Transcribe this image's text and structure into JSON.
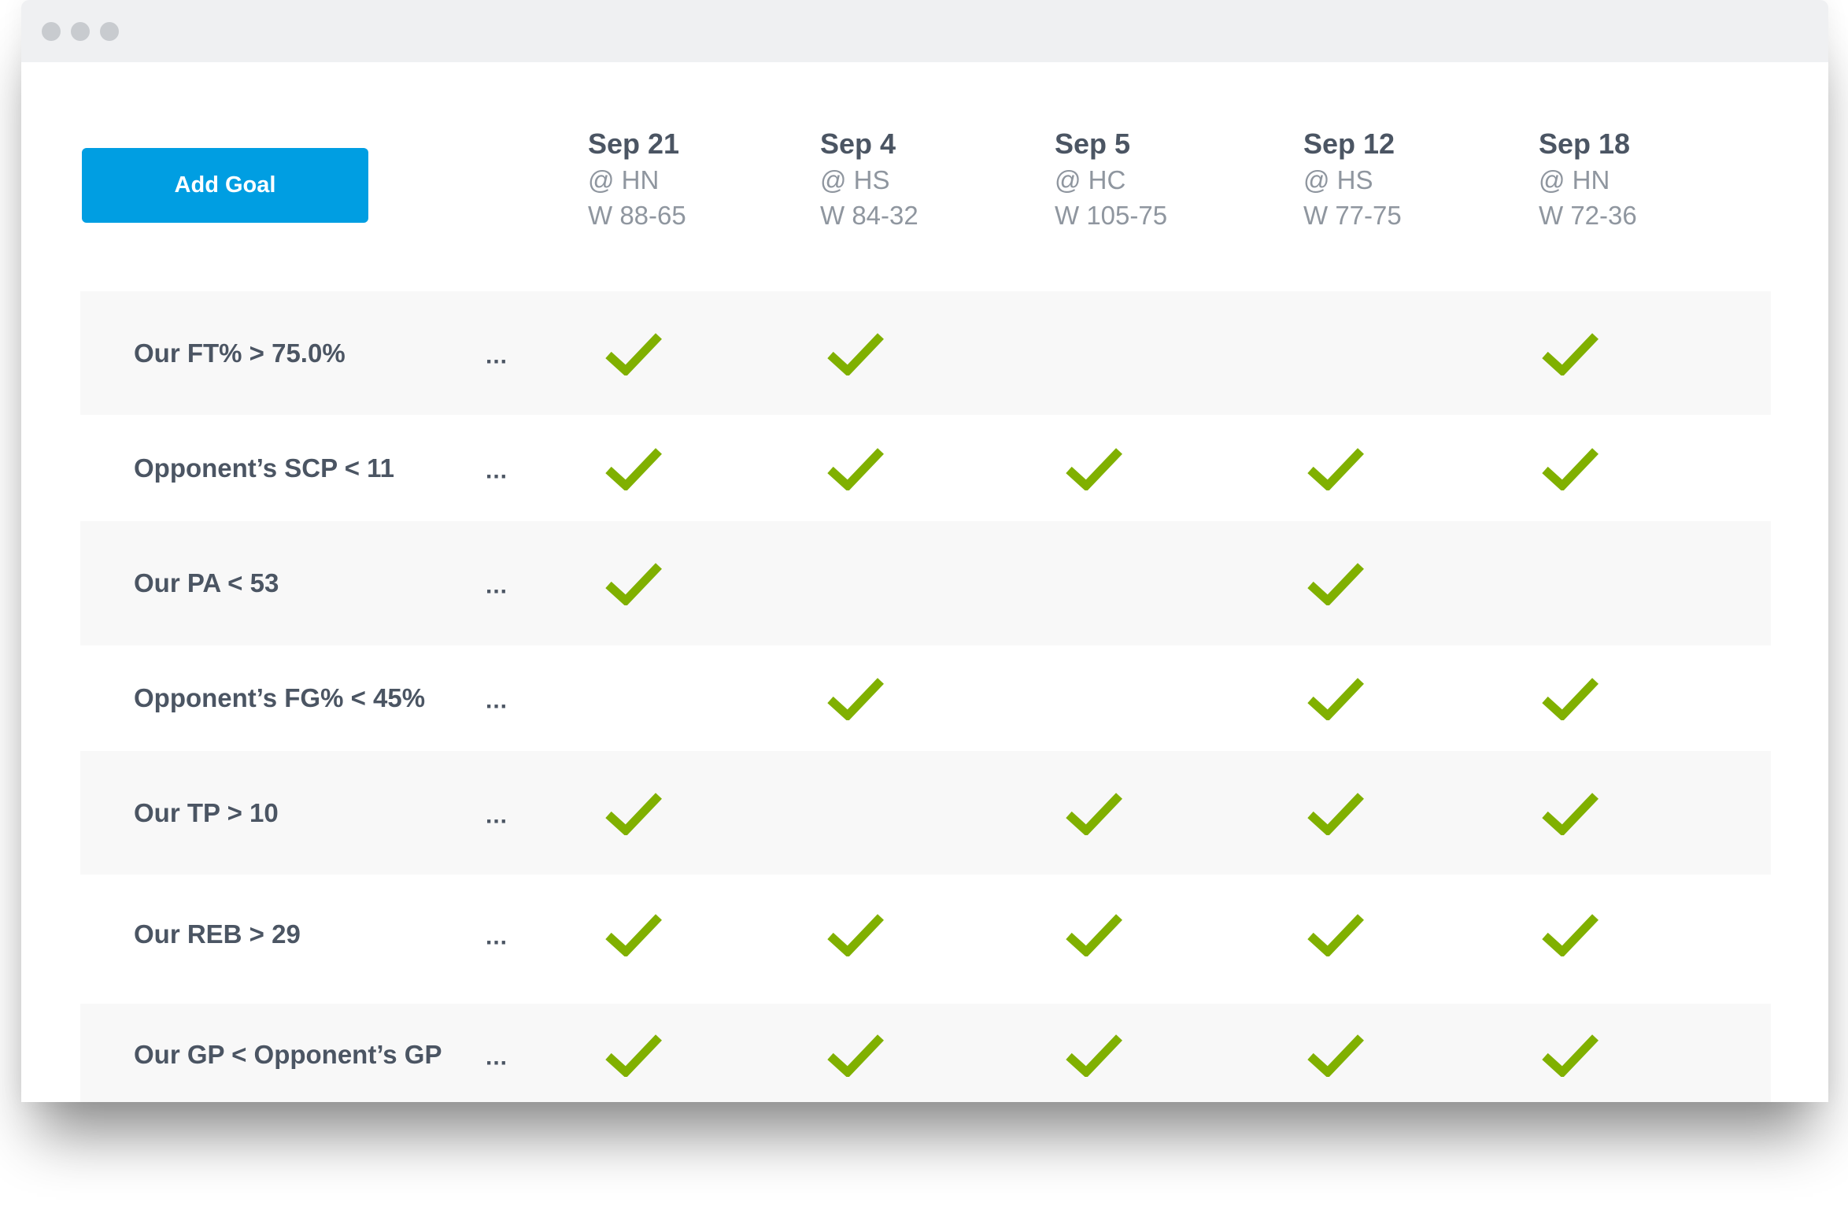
{
  "toolbar": {
    "add_goal_label": "Add Goal"
  },
  "colors": {
    "accent": "#009ee2",
    "check": "#80b000",
    "text": "#4b5563"
  },
  "games": [
    {
      "date": "Sep 21",
      "opponent": "@ HN",
      "result": "W 88-65"
    },
    {
      "date": "Sep 4",
      "opponent": "@ HS",
      "result": "W 84-32"
    },
    {
      "date": "Sep 5",
      "opponent": "@ HC",
      "result": "W 105-75"
    },
    {
      "date": "Sep 12",
      "opponent": "@ HS",
      "result": "W 77-75"
    },
    {
      "date": "Sep 18",
      "opponent": "@ HN",
      "result": "W 72-36"
    }
  ],
  "goals": [
    {
      "label": "Our FT% > 75.0%",
      "more": "...",
      "met": [
        true,
        true,
        false,
        false,
        true
      ]
    },
    {
      "label": "Opponent’s SCP < 11",
      "more": "...",
      "met": [
        true,
        true,
        true,
        true,
        true
      ]
    },
    {
      "label": "Our PA < 53",
      "more": "...",
      "met": [
        true,
        false,
        false,
        true,
        false
      ]
    },
    {
      "label": "Opponent’s FG% < 45%",
      "more": "...",
      "met": [
        false,
        true,
        false,
        true,
        true
      ]
    },
    {
      "label": "Our TP > 10",
      "more": "...",
      "met": [
        true,
        false,
        true,
        true,
        true
      ]
    },
    {
      "label": "Our REB > 29",
      "more": "...",
      "met": [
        true,
        true,
        true,
        true,
        true
      ]
    },
    {
      "label": "Our GP < Opponent’s GP",
      "more": "...",
      "met": [
        true,
        true,
        true,
        true,
        true
      ]
    }
  ]
}
